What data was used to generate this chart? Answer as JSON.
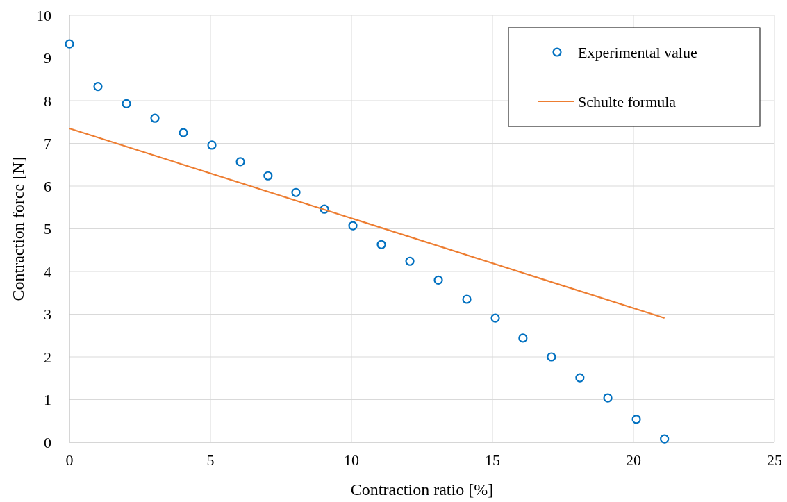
{
  "chart_data": {
    "type": "scatter",
    "xlabel": "Contraction ratio [%]",
    "ylabel": "Contraction force [N]",
    "xlim": [
      0,
      25
    ],
    "xticks": [
      0,
      5,
      10,
      15,
      20,
      25
    ],
    "ylim": [
      0,
      10
    ],
    "yticks": [
      0,
      1,
      2,
      3,
      4,
      5,
      6,
      7,
      8,
      9,
      10
    ],
    "grid": true,
    "legend": "top right",
    "series": [
      {
        "name": "Experimental value",
        "marker": "circle",
        "color": "#0070c0",
        "x": [
          0,
          1.01,
          2.02,
          3.03,
          4.04,
          5.05,
          6.06,
          7.04,
          8.03,
          9.04,
          10.05,
          11.06,
          12.07,
          13.08,
          14.09,
          15.1,
          16.08,
          17.09,
          18.1,
          19.09,
          20.1,
          21.1
        ],
        "values": [
          9.33,
          8.33,
          7.93,
          7.59,
          7.25,
          6.96,
          6.57,
          6.24,
          5.85,
          5.46,
          5.07,
          4.63,
          4.24,
          3.8,
          3.35,
          2.91,
          2.44,
          2.0,
          1.51,
          1.04,
          0.54,
          0.08
        ]
      },
      {
        "name": "Schulte formula",
        "type": "line",
        "marker": "none",
        "line_style": "solid",
        "color": "#ed7d31",
        "x": [
          0,
          21.1
        ],
        "values": [
          7.35,
          2.91
        ]
      }
    ]
  }
}
